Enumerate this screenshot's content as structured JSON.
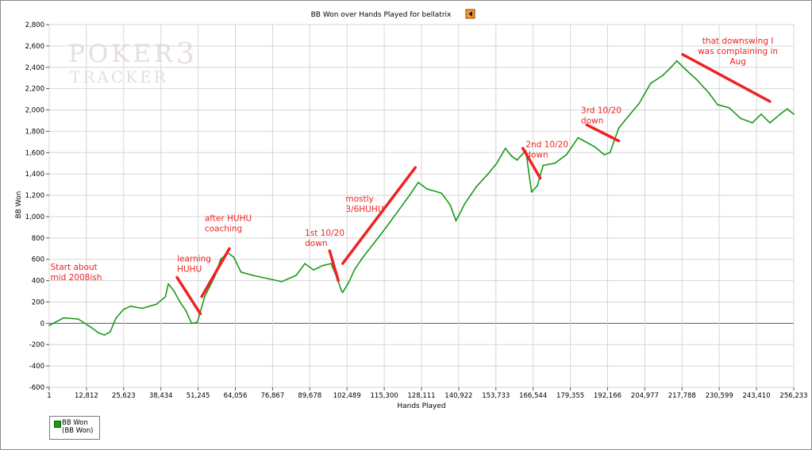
{
  "watermark": {
    "line1": "POKER",
    "digit": "3",
    "line2": "TRACKER"
  },
  "chart_data": {
    "type": "line",
    "title": "BB Won over Hands Played for bellatrix",
    "xlabel": "Hands Played",
    "ylabel": "BB Won",
    "xlim": [
      1,
      256233
    ],
    "ylim": [
      -600,
      2800
    ],
    "x_ticks": [
      1,
      12812,
      25623,
      38434,
      51245,
      64056,
      76867,
      89678,
      102489,
      115300,
      128111,
      140922,
      153733,
      166544,
      179355,
      192166,
      204977,
      217788,
      230599,
      243410,
      256233
    ],
    "x_tick_labels": [
      "1",
      "12,812",
      "25,623",
      "38,434",
      "51,245",
      "64,056",
      "76,867",
      "89,678",
      "102,489",
      "115,300",
      "128,111",
      "140,922",
      "153,733",
      "166,544",
      "179,355",
      "192,166",
      "204,977",
      "217,788",
      "230,599",
      "243,410",
      "256,233"
    ],
    "y_ticks": [
      -600,
      -400,
      -200,
      0,
      200,
      400,
      600,
      800,
      1000,
      1200,
      1400,
      1600,
      1800,
      2000,
      2200,
      2400,
      2600,
      2800
    ],
    "y_tick_labels": [
      "-600",
      "-400",
      "-200",
      "0",
      "200",
      "400",
      "600",
      "800",
      "1,000",
      "1,200",
      "1,400",
      "1,600",
      "1,800",
      "2,000",
      "2,200",
      "2,400",
      "2,600",
      "2,800"
    ],
    "grid": true,
    "legend_position": "bottom-left",
    "series": [
      {
        "name": "BB Won",
        "legend_sub": "(BB Won)",
        "color": "#1a9a1a",
        "x": [
          1,
          5000,
          10000,
          14000,
          17000,
          19000,
          21000,
          23000,
          25600,
          28000,
          32000,
          37000,
          40000,
          41000,
          43000,
          45000,
          47000,
          49000,
          51000,
          53500,
          57000,
          59000,
          61500,
          63500,
          66000,
          70000,
          75000,
          80000,
          85000,
          88000,
          91000,
          94000,
          97000,
          99000,
          100500,
          101000,
          103000,
          105000,
          108000,
          112000,
          116000,
          120000,
          124000,
          127000,
          130000,
          135000,
          138000,
          140000,
          143000,
          147000,
          151000,
          154000,
          157000,
          159000,
          161000,
          164000,
          166000,
          168000,
          170000,
          174000,
          178000,
          182000,
          186000,
          188000,
          191000,
          193000,
          196000,
          199000,
          203000,
          207000,
          211000,
          214000,
          216000,
          219000,
          223000,
          227000,
          230000,
          234000,
          238000,
          242000,
          245000,
          248000,
          252000,
          254000,
          256233
        ],
        "y": [
          -20,
          50,
          40,
          -30,
          -90,
          -110,
          -80,
          50,
          130,
          160,
          140,
          180,
          250,
          370,
          300,
          200,
          120,
          0,
          10,
          250,
          440,
          600,
          660,
          620,
          480,
          450,
          420,
          390,
          450,
          560,
          500,
          540,
          560,
          430,
          310,
          290,
          380,
          500,
          620,
          760,
          900,
          1050,
          1200,
          1320,
          1260,
          1220,
          1110,
          960,
          1120,
          1280,
          1400,
          1500,
          1640,
          1570,
          1530,
          1620,
          1230,
          1290,
          1480,
          1500,
          1580,
          1740,
          1680,
          1650,
          1580,
          1600,
          1830,
          1930,
          2060,
          2250,
          2320,
          2400,
          2460,
          2380,
          2280,
          2160,
          2050,
          2020,
          1920,
          1880,
          1960,
          1880,
          1970,
          2010,
          1960
        ]
      }
    ],
    "annotations": [
      {
        "text": [
          "Start about",
          "mid 2008ish"
        ],
        "x": 400,
        "y": 500,
        "anchor": "start"
      },
      {
        "text": [
          "learning",
          "HUHU"
        ],
        "x": 44000,
        "y": 580,
        "anchor": "start",
        "stroke": [
          [
            44000,
            430
          ],
          [
            52000,
            90
          ]
        ]
      },
      {
        "text": [
          "after HUHU",
          "coaching"
        ],
        "x": 53500,
        "y": 960,
        "anchor": "start",
        "stroke": [
          [
            52500,
            250
          ],
          [
            62000,
            700
          ]
        ]
      },
      {
        "text": [
          "1st 10/20",
          "down"
        ],
        "x": 88000,
        "y": 820,
        "anchor": "start",
        "stroke": [
          [
            96500,
            680
          ],
          [
            99500,
            400
          ]
        ]
      },
      {
        "text": [
          "mostly",
          "3/6HUHU"
        ],
        "x": 102000,
        "y": 1140,
        "anchor": "start",
        "stroke": [
          [
            101000,
            560
          ],
          [
            126000,
            1460
          ]
        ]
      },
      {
        "text": [
          "2nd 10/20",
          "down"
        ],
        "x": 164000,
        "y": 1650,
        "anchor": "start",
        "stroke": [
          [
            163000,
            1640
          ],
          [
            169000,
            1360
          ]
        ]
      },
      {
        "text": [
          "3rd 10/20",
          "down"
        ],
        "x": 183000,
        "y": 1970,
        "anchor": "start",
        "stroke": [
          [
            185000,
            1860
          ],
          [
            196000,
            1710
          ]
        ]
      },
      {
        "text": [
          "that downswing I",
          "was complaining in",
          "Aug"
        ],
        "x": 237000,
        "y": 2620,
        "anchor": "middle",
        "stroke": [
          [
            218000,
            2520
          ],
          [
            248000,
            2080
          ]
        ]
      }
    ]
  }
}
